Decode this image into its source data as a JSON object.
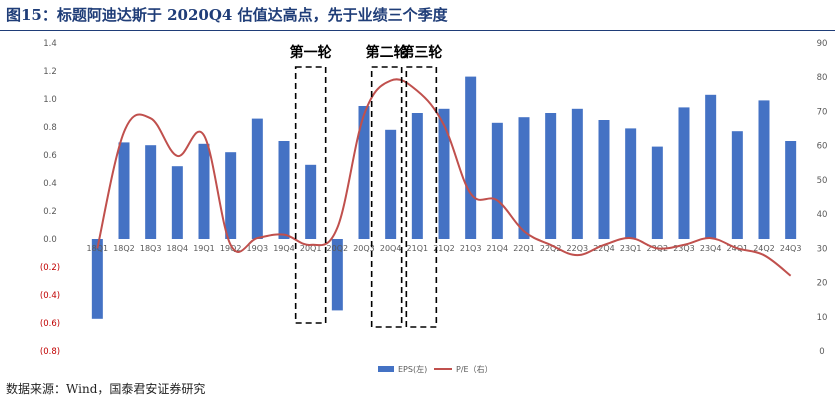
{
  "title": "图15：标题阿迪达斯于 2020Q4 估值达高点，先于业绩三个季度",
  "source": "数据来源：Wind，国泰君安证券研究",
  "chart_data": {
    "type": "bar",
    "categories": [
      "18Q1",
      "18Q2",
      "18Q3",
      "18Q4",
      "19Q1",
      "19Q2",
      "19Q3",
      "19Q4",
      "20Q1",
      "20Q2",
      "20Q3",
      "20Q4",
      "21Q1",
      "21Q2",
      "21Q3",
      "21Q4",
      "22Q1",
      "22Q2",
      "22Q3",
      "22Q4",
      "23Q1",
      "23Q2",
      "23Q3",
      "23Q4",
      "24Q1",
      "24Q2",
      "24Q3"
    ],
    "series": [
      {
        "name": "EPS(左)",
        "type": "bar",
        "axis": "left",
        "color": "#4472c4",
        "values": [
          -0.57,
          0.69,
          0.67,
          0.52,
          0.68,
          0.62,
          0.86,
          0.7,
          0.53,
          -0.51,
          0.95,
          0.78,
          0.9,
          0.93,
          1.16,
          0.83,
          0.87,
          0.9,
          0.93,
          0.85,
          0.79,
          0.66,
          0.94,
          1.03,
          0.77,
          0.99,
          0.7
        ]
      },
      {
        "name": "P/E（右）",
        "type": "line",
        "axis": "right",
        "color": "#c0504d",
        "values": [
          30,
          64,
          68,
          57,
          63,
          31,
          33,
          34,
          31,
          36,
          69,
          79,
          76,
          66,
          46,
          44,
          35,
          31,
          28,
          31,
          33,
          30,
          31,
          33,
          30,
          28,
          22
        ]
      }
    ],
    "left_axis": {
      "min": -0.8,
      "max": 1.4,
      "step": 0.2,
      "tick_labels": [
        "(0.8)",
        "(0.6)",
        "(0.4)",
        "(0.2)",
        "0.0",
        "0.2",
        "0.4",
        "0.6",
        "0.8",
        "1.0",
        "1.2",
        "1.4"
      ]
    },
    "right_axis": {
      "min": 0,
      "max": 90,
      "step": 10,
      "tick_labels": [
        "0",
        "10",
        "20",
        "30",
        "40",
        "50",
        "60",
        "70",
        "80",
        "90"
      ]
    },
    "annotations": [
      {
        "label": "第一轮",
        "from": "20Q1",
        "to": "20Q1"
      },
      {
        "label": "第二轮",
        "from": "20Q4",
        "to": "20Q4"
      },
      {
        "label": "第三轮",
        "from": "21Q1",
        "to": "21Q1"
      }
    ],
    "legend_position": "bottom",
    "colors": {
      "bar": "#4472c4",
      "line": "#c0504d",
      "negative_tick": "#c00000",
      "axis_text": "#595959",
      "title": "#1f3d78"
    }
  }
}
